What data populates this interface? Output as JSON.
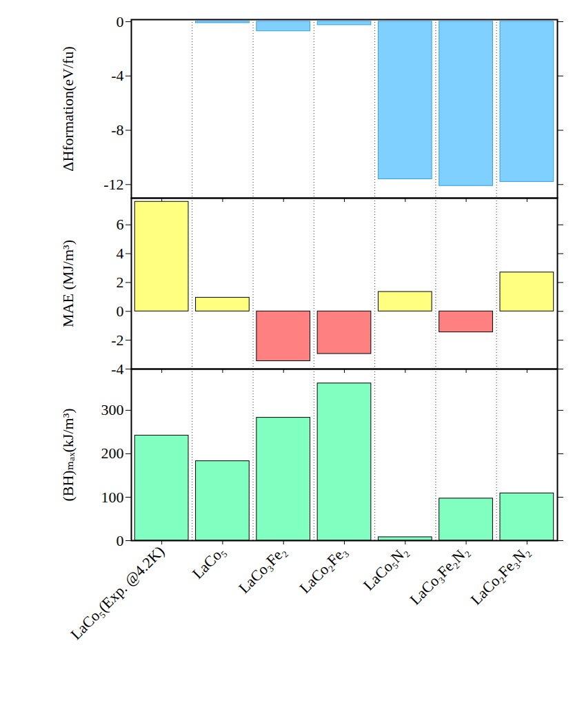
{
  "chart_data": [
    {
      "type": "bar",
      "y_label": "ΔHformation(eV/fu)",
      "categories": [
        "LaCo₅(Exp. @4.2K)",
        "LaCo₅",
        "LaCo₃Fe₂",
        "LaCo₂Fe₃",
        "LaCo₅N₂",
        "LaCo₃Fe₂N₂",
        "LaCo₂Fe₃N₂"
      ],
      "values": [
        null,
        -0.1,
        -0.7,
        -0.25,
        -11.6,
        -12.1,
        -11.8
      ],
      "color": "#80d0ff",
      "ylim": [
        -13,
        0.15
      ],
      "yticks": [
        0,
        -4,
        -8,
        -12
      ],
      "tick_labels": "y"
    },
    {
      "type": "bar",
      "y_label": "MAE (MJ/m³)",
      "categories": [
        "LaCo₅(Exp. @4.2K)",
        "LaCo₅",
        "LaCo₃Fe₂",
        "LaCo₂Fe₃",
        "LaCo₅N₂",
        "LaCo₃Fe₂N₂",
        "LaCo₂Fe₃N₂"
      ],
      "values": [
        7.6,
        0.95,
        -3.45,
        -2.95,
        1.35,
        -1.45,
        2.7
      ],
      "colors": [
        "#ffff80",
        "#ffff80",
        "#ff8080",
        "#ff8080",
        "#ffff80",
        "#ff8080",
        "#ffff80"
      ],
      "ylim": [
        -4,
        7.85
      ],
      "yticks": [
        -4,
        -2,
        0,
        2,
        4,
        6
      ],
      "tick_labels": "y"
    },
    {
      "type": "bar",
      "y_label": "(BH)ₘₐₓ(kJ/m³)",
      "categories": [
        "LaCo₅(Exp. @4.2K)",
        "LaCo₅",
        "LaCo₃Fe₂",
        "LaCo₂Fe₃",
        "LaCo₅N₂",
        "LaCo₃Fe₂N₂",
        "LaCo₂Fe₃N₂"
      ],
      "values": [
        242,
        183,
        283,
        362,
        8,
        97,
        109
      ],
      "color": "#80ffc0",
      "ylim": [
        0,
        395
      ],
      "yticks": [
        0,
        100,
        200,
        300
      ]
    }
  ]
}
